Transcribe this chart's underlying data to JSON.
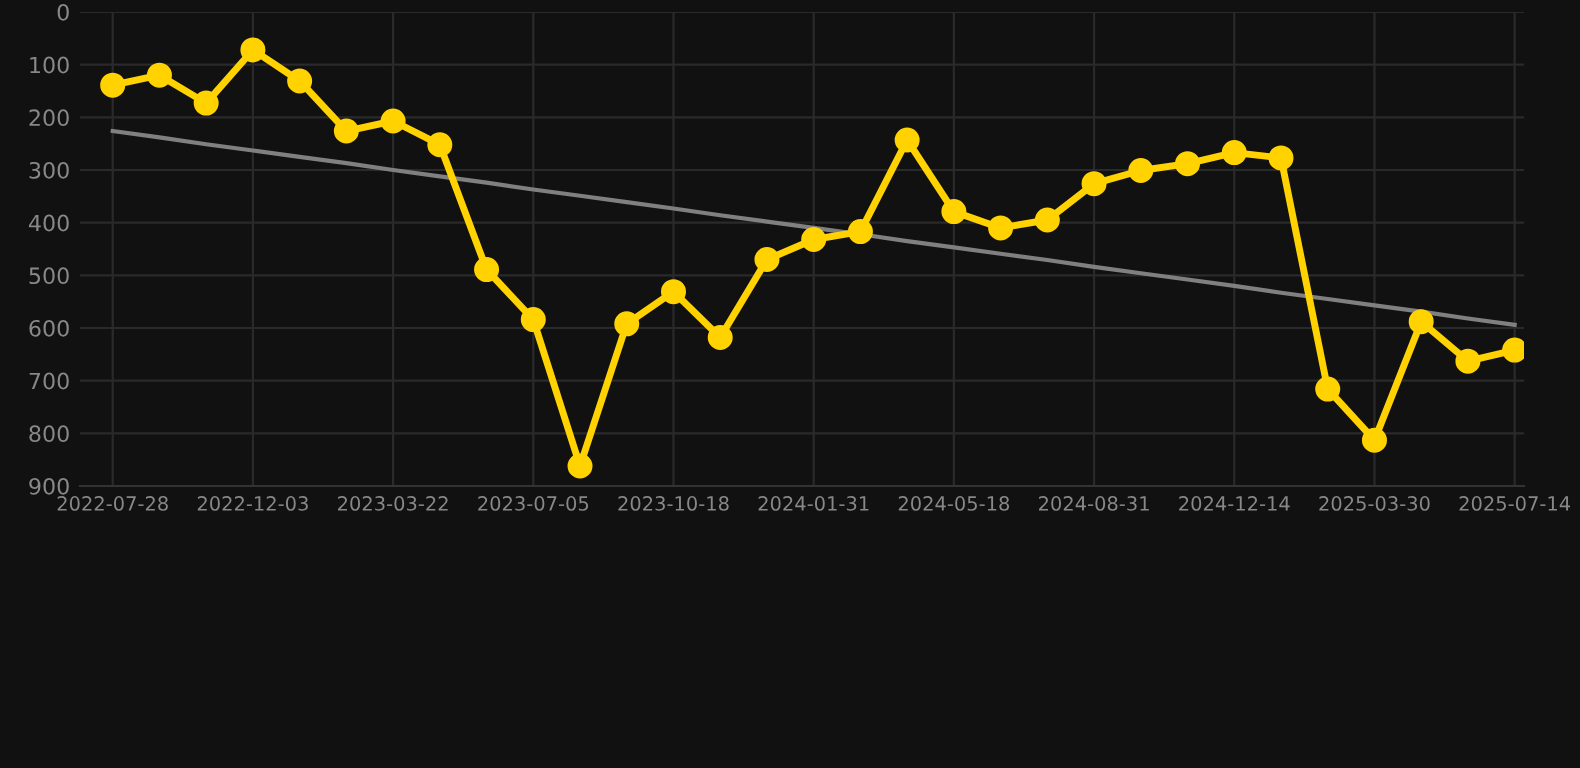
{
  "chart_data": {
    "type": "line",
    "categories": [
      "2022-07-28",
      null,
      null,
      "2022-12-03",
      null,
      null,
      "2023-03-22",
      null,
      null,
      "2023-07-05",
      null,
      null,
      "2023-10-18",
      null,
      null,
      "2024-01-31",
      null,
      null,
      "2024-05-18",
      null,
      null,
      "2024-08-31",
      null,
      null,
      "2024-12-14",
      null,
      null,
      "2025-03-30",
      null,
      null,
      "2025-07-14"
    ],
    "series": [
      {
        "color": "#808080",
        "marker": "none",
        "values": [
          226,
          238,
          251,
          263,
          275,
          287,
          300,
          312,
          324,
          337,
          349,
          361,
          373,
          386,
          398,
          410,
          422,
          435,
          447,
          459,
          471,
          484,
          496,
          508,
          520,
          533,
          545,
          557,
          569,
          582,
          594
        ]
      },
      {
        "color": "#ffd200",
        "marker": "circle",
        "values": [
          139,
          120,
          173,
          72,
          131,
          226,
          207,
          252,
          489,
          584,
          862,
          592,
          531,
          618,
          470,
          432,
          417,
          243,
          379,
          410,
          395,
          326,
          301,
          288,
          267,
          277,
          716,
          813,
          588,
          663,
          642
        ]
      }
    ],
    "ylim": [
      900,
      0
    ],
    "yticks": [
      0,
      100,
      200,
      300,
      400,
      500,
      600,
      700,
      800,
      900
    ],
    "grid": true
  }
}
